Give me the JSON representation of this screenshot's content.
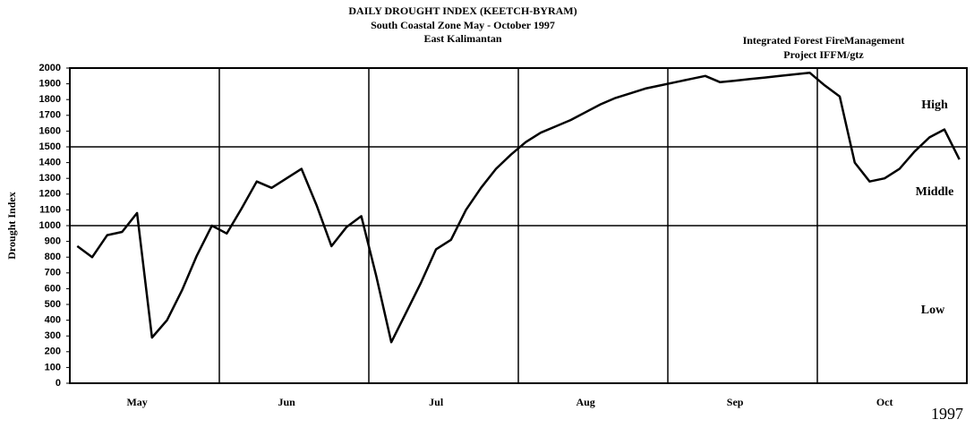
{
  "chart_data": {
    "type": "line",
    "title": "DAILY DROUGHT INDEX (KEETCH-BYRAM)",
    "subtitle": "South Coastal Zone May - October 1997",
    "subtitle2": "East Kalimantan",
    "credit": "Integrated Forest FireManagement",
    "credit2": "Project IFFM/gtz",
    "year_label": "1997",
    "y_label": "Drought Index",
    "annotations": [
      "High",
      "Middle",
      "Low"
    ],
    "categories": [
      null,
      null,
      null,
      null,
      "May",
      null,
      null,
      null,
      null,
      null,
      null,
      null,
      null,
      null,
      "Jun",
      null,
      null,
      null,
      null,
      null,
      null,
      null,
      null,
      null,
      "Jul",
      null,
      null,
      null,
      null,
      null,
      null,
      null,
      null,
      null,
      "Aug",
      null,
      null,
      null,
      null,
      null,
      null,
      null,
      null,
      null,
      "Sep",
      null,
      null,
      null,
      null,
      null,
      null,
      null,
      null,
      null,
      "Oct",
      null,
      null,
      null,
      null,
      null
    ],
    "series": [
      {
        "color": "#000000",
        "values": [
          870,
          800,
          940,
          960,
          1080,
          290,
          400,
          590,
          810,
          1000,
          950,
          1110,
          1280,
          1240,
          1300,
          1360,
          1130,
          870,
          990,
          1060,
          680,
          260,
          450,
          640,
          850,
          910,
          1100,
          1240,
          1360,
          1450,
          1530,
          1590,
          1630,
          1670,
          1720,
          1770,
          1810,
          1840,
          1870,
          1890,
          1910,
          1930,
          1950,
          1910,
          1920,
          1930,
          1940,
          1950,
          1960,
          1970,
          1890,
          1820,
          1400,
          1280,
          1300,
          1360,
          1470,
          1560,
          1610,
          1420
        ]
      }
    ],
    "zone_lines": [
      1000,
      1500
    ],
    "ylim": [
      0,
      2000
    ],
    "yticks": [
      0,
      100,
      200,
      300,
      400,
      500,
      600,
      700,
      800,
      900,
      1000,
      1100,
      1200,
      1300,
      1400,
      1500,
      1600,
      1700,
      1800,
      1900,
      2000
    ]
  }
}
